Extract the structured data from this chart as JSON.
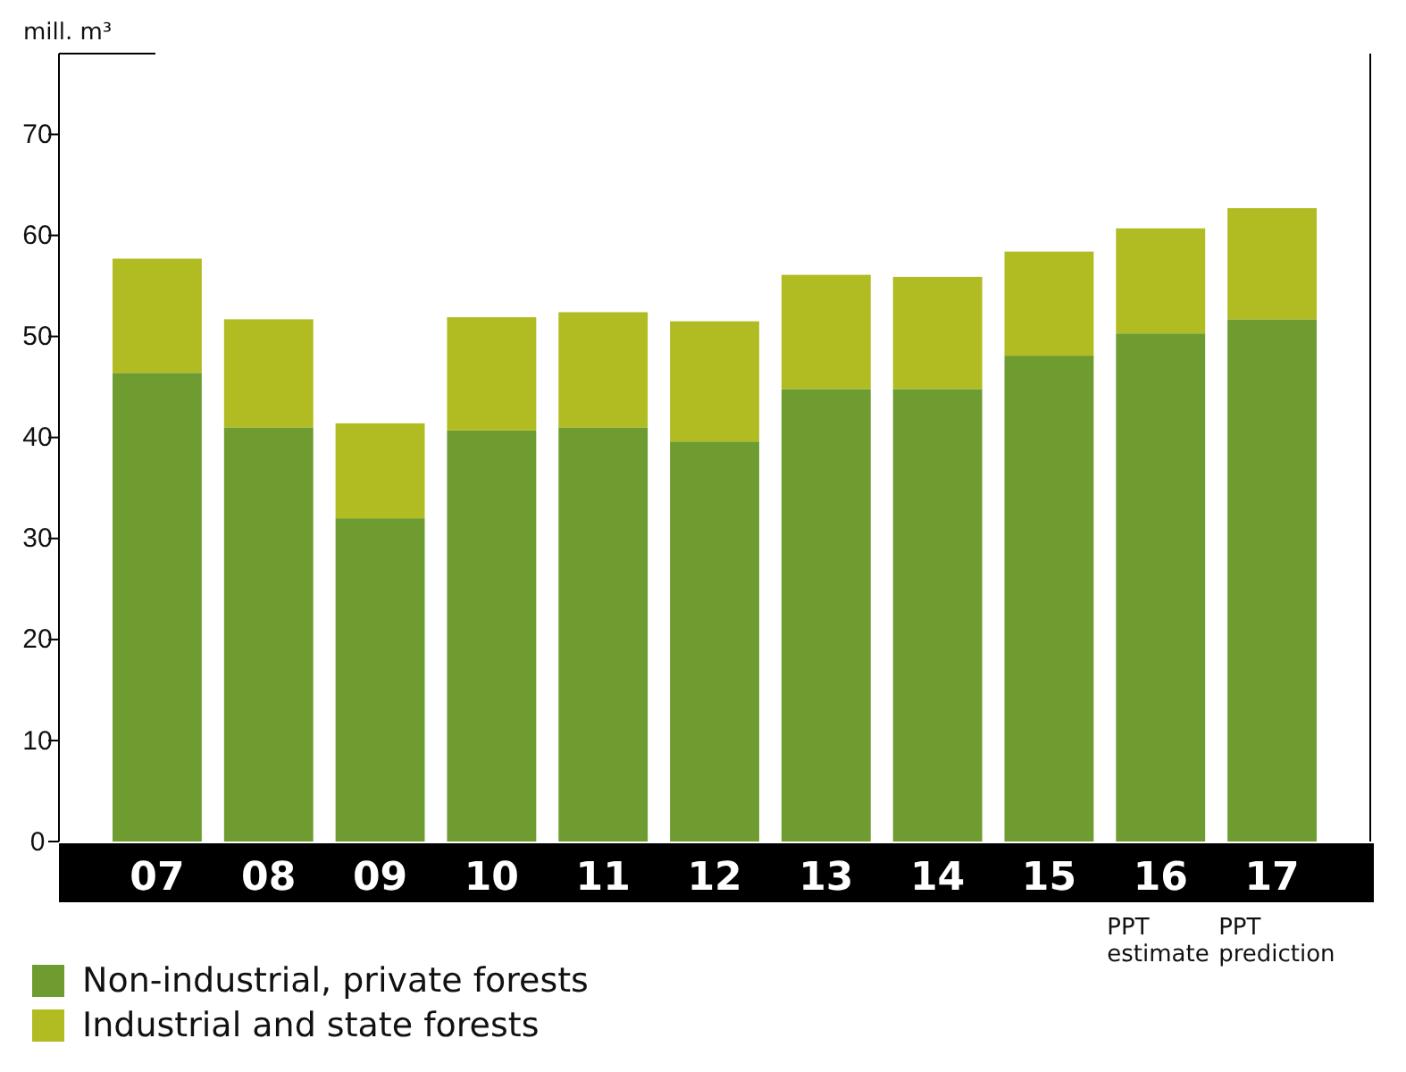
{
  "chart_data": {
    "type": "bar",
    "stacked": true,
    "ylabel": "mill. m³",
    "categories": [
      "07",
      "08",
      "09",
      "10",
      "11",
      "12",
      "13",
      "14",
      "15",
      "16",
      "17"
    ],
    "series": [
      {
        "name": "Non-industrial, private forests",
        "color": "#6f9c30",
        "values": [
          46.4,
          41.0,
          32.0,
          40.7,
          41.0,
          39.6,
          44.8,
          44.8,
          48.1,
          50.3,
          51.7
        ]
      },
      {
        "name": "Industrial and state forests",
        "color": "#b0bc22",
        "values": [
          11.3,
          10.7,
          9.4,
          11.2,
          11.4,
          11.9,
          11.3,
          11.1,
          10.3,
          10.4,
          11.0
        ]
      }
    ],
    "ylim": [
      0,
      78
    ],
    "yticks": [
      0,
      10,
      20,
      30,
      40,
      50,
      60,
      70
    ],
    "legend": "bottom",
    "annotations": [
      "PPT estimate",
      "PPT prediction"
    ]
  }
}
